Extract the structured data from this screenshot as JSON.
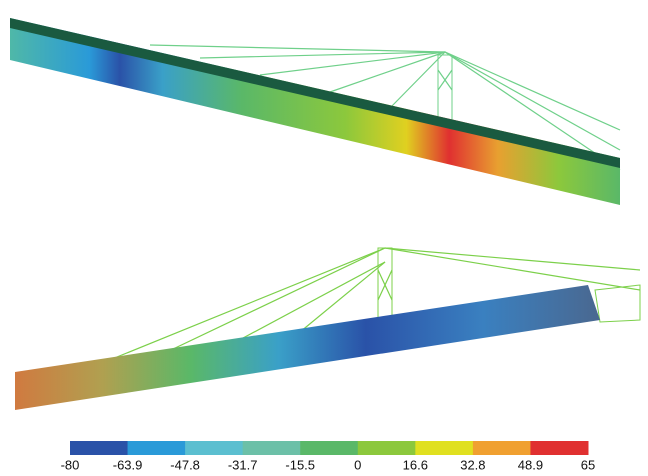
{
  "legend": {
    "labels": [
      "-80",
      "-63.9",
      "-47.8",
      "-31.7",
      "-15.5",
      "0",
      "16.6",
      "32.8",
      "48.9",
      "65"
    ]
  }
}
